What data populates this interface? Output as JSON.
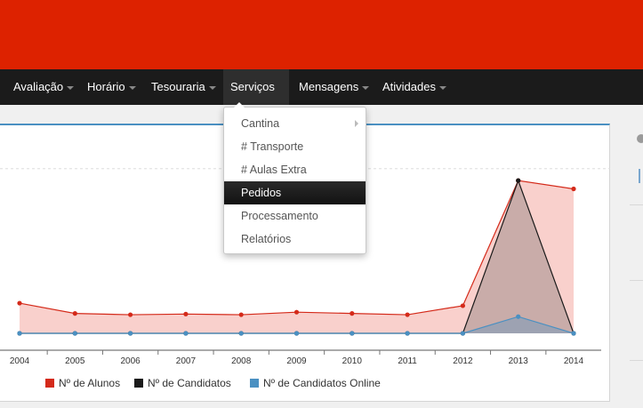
{
  "navbar": {
    "items": [
      {
        "label": "Avaliação"
      },
      {
        "label": "Horário"
      },
      {
        "label": "Tesouraria"
      },
      {
        "label": "Serviços"
      },
      {
        "label": "Mensagens"
      },
      {
        "label": "Atividades"
      }
    ],
    "active_item": "Serviços"
  },
  "dropdown": {
    "items": [
      {
        "label": "Cantina",
        "has_submenu": true
      },
      {
        "label": "# Transporte"
      },
      {
        "label": "# Aulas Extra"
      },
      {
        "label": "Pedidos",
        "highlighted": true
      },
      {
        "label": "Processamento"
      },
      {
        "label": "Relatórios"
      }
    ]
  },
  "colors": {
    "header": "#dd2200",
    "navbar": "#1b1b1b",
    "alunos": "#d42a1a",
    "candidatos": "#1a1a1a",
    "online": "#4a90c2"
  },
  "chart_data": {
    "type": "area",
    "categories": [
      "2004",
      "2005",
      "2006",
      "2007",
      "2008",
      "2009",
      "2010",
      "2011",
      "2012",
      "2013",
      "2014"
    ],
    "series": [
      {
        "name": "Nº de Alunos",
        "values": [
          47,
          31,
          29,
          30,
          29,
          33,
          31,
          29,
          43,
          238,
          225
        ]
      },
      {
        "name": "Nº de Candidatos",
        "values": [
          0,
          0,
          0,
          0,
          0,
          0,
          0,
          0,
          0,
          238,
          0
        ]
      },
      {
        "name": "Nº de Candidatos Online",
        "values": [
          0,
          0,
          0,
          0,
          0,
          0,
          0,
          0,
          0,
          26,
          0
        ]
      }
    ],
    "ylim": [
      0,
      270
    ],
    "grid": true,
    "legend_position": "bottom"
  }
}
